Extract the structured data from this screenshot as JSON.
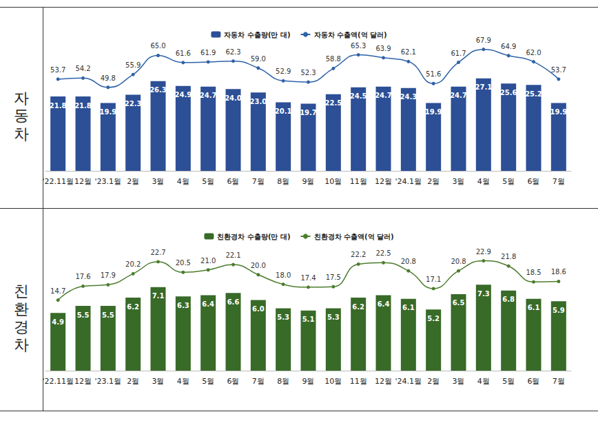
{
  "chart_data": [
    {
      "type": "bar",
      "title": "자동차",
      "categories": [
        "'22.11월",
        "12월",
        "'23.1월",
        "2월",
        "3월",
        "4월",
        "5월",
        "6월",
        "7월",
        "8월",
        "9월",
        "10월",
        "11월",
        "12월",
        "'24.1월",
        "2월",
        "3월",
        "4월",
        "5월",
        "6월",
        "7월"
      ],
      "series": [
        {
          "name": "자동차 수출량(만 대)",
          "type": "bar",
          "color": "#2c4f96",
          "values": [
            21.8,
            21.8,
            19.9,
            22.3,
            26.3,
            24.9,
            24.7,
            24.0,
            23.0,
            20.1,
            19.7,
            22.5,
            24.5,
            24.7,
            24.3,
            19.9,
            24.7,
            27.1,
            25.6,
            25.2,
            19.9
          ],
          "value_labels": [
            "21.8",
            "21.8",
            "19.9",
            "22.3",
            "26.3",
            "24.9",
            "24.7",
            "24.0",
            "23.0",
            "20.1",
            "19.7",
            "22.5",
            "24.5",
            "24.7",
            "24.3",
            "19.9",
            "24.7",
            "27.1",
            "25.6",
            "25.2",
            "19.9"
          ]
        },
        {
          "name": "자동차 수출액(억 달러)",
          "type": "line",
          "axis": "y2",
          "color": "#2f62a8",
          "marker": "circle",
          "line_style": "smooth",
          "values": [
            53.7,
            54.2,
            49.8,
            55.9,
            65.0,
            61.6,
            61.9,
            62.3,
            59.0,
            52.9,
            52.3,
            58.8,
            65.3,
            63.9,
            62.1,
            51.6,
            61.7,
            67.9,
            64.9,
            62.0,
            53.7
          ],
          "value_labels": [
            "53.7",
            "54.2",
            "49.8",
            "55.9",
            "65.0",
            "61.6",
            "61.9",
            "62.3",
            "59.0",
            "52.9",
            "52.3",
            "58.8",
            "65.3",
            "63.9",
            "62.1",
            "51.6",
            "61.7",
            "67.9",
            "64.9",
            "62.0",
            "53.7"
          ]
        }
      ],
      "ylim": [
        0,
        40
      ],
      "y2lim": [
        10,
        75
      ],
      "grid": false,
      "tick_labels": "x",
      "data_labels": true,
      "legend": "top"
    },
    {
      "type": "bar",
      "title": "친환경차",
      "categories": [
        "'22.11월",
        "12월",
        "'23.1월",
        "2월",
        "3월",
        "4월",
        "5월",
        "6월",
        "7월",
        "8월",
        "9월",
        "10월",
        "11월",
        "12월",
        "'24.1월",
        "2월",
        "3월",
        "4월",
        "5월",
        "6월",
        "7월"
      ],
      "series": [
        {
          "name": "친환경차 수출량(만 대)",
          "type": "bar",
          "color": "#386a28",
          "values": [
            4.9,
            5.5,
            5.5,
            6.2,
            7.1,
            6.3,
            6.4,
            6.6,
            6.0,
            5.3,
            5.1,
            5.3,
            6.2,
            6.4,
            6.1,
            5.2,
            6.5,
            7.3,
            6.8,
            6.1,
            5.9
          ],
          "value_labels": [
            "4.9",
            "5.5",
            "5.5",
            "6.2",
            "7.1",
            "6.3",
            "6.4",
            "6.6",
            "6.0",
            "5.3",
            "5.1",
            "5.3",
            "6.2",
            "6.4",
            "6.1",
            "5.2",
            "6.5",
            "7.3",
            "6.8",
            "6.1",
            "5.9"
          ]
        },
        {
          "name": "친환경차 수출액(억 달러)",
          "type": "line",
          "axis": "y2",
          "color": "#4c7d2e",
          "marker": "circle",
          "line_style": "smooth",
          "values": [
            14.7,
            17.6,
            17.9,
            20.2,
            22.7,
            20.5,
            21.0,
            22.1,
            20.0,
            18.0,
            17.4,
            17.5,
            22.2,
            22.5,
            20.8,
            17.1,
            20.8,
            22.9,
            21.8,
            18.5,
            18.6
          ],
          "value_labels": [
            "14.7",
            "17.6",
            "17.9",
            "20.2",
            "22.7",
            "20.5",
            "21.0",
            "22.1",
            "20.0",
            "18.0",
            "17.4",
            "17.5",
            "22.2",
            "22.5",
            "20.8",
            "17.1",
            "20.8",
            "22.9",
            "21.8",
            "18.5",
            "18.6"
          ]
        }
      ],
      "ylim": [
        0,
        11
      ],
      "y2lim": [
        0,
        27
      ],
      "grid": false,
      "tick_labels": "x",
      "data_labels": true,
      "legend": "top"
    }
  ]
}
